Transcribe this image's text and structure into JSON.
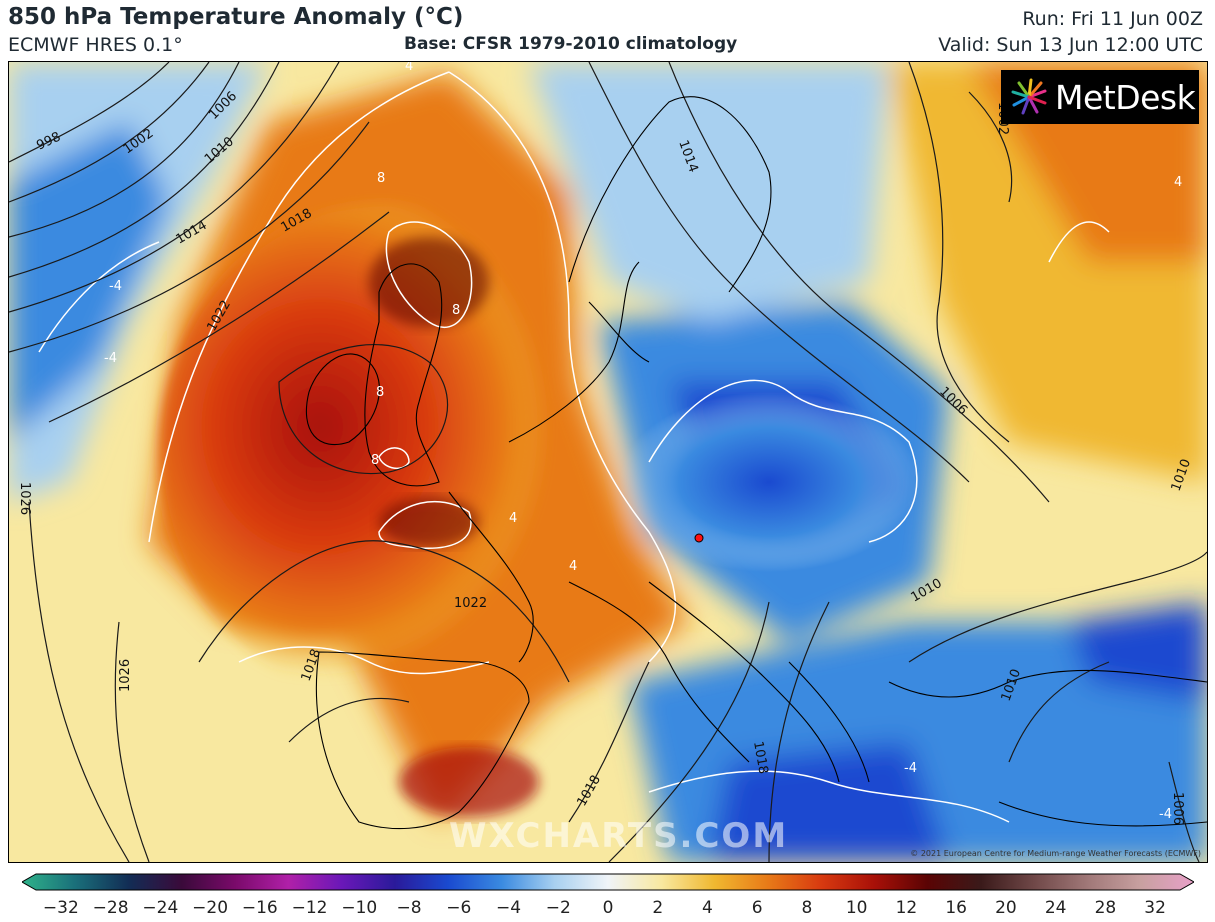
{
  "header": {
    "title": "850 hPa Temperature Anomaly (°C)",
    "model": "ECMWF HRES 0.1°",
    "base": "Base: CFSR 1979-2010 climatology",
    "run": "Run: Fri 11 Jun 00Z",
    "valid": "Valid: Sun 13 Jun 12:00 UTC"
  },
  "logo": {
    "text": "MetDesk"
  },
  "copyright": "© 2021 European Centre for Medium-range Weather Forecasts (ECMWF)",
  "watermark": "WXCHARTS.COM",
  "isobar_labels": [
    "998",
    "1002",
    "1006",
    "1010",
    "1014",
    "1018",
    "1022",
    "1026",
    "1014",
    "1002",
    "1006",
    "1010",
    "1022",
    "1026",
    "1018",
    "1018",
    "1010",
    "1006",
    "1010",
    "1018"
  ],
  "anomaly_labels": [
    "8",
    "8",
    "8",
    "8",
    "4",
    "4",
    "4",
    "4",
    "-4",
    "-4",
    "-4",
    "-4"
  ],
  "colorbar": {
    "ticks": [
      "−32",
      "−28",
      "−24",
      "−20",
      "−16",
      "−12",
      "−10",
      "−8",
      "−6",
      "−4",
      "−2",
      "0",
      "2",
      "4",
      "6",
      "8",
      "10",
      "12",
      "16",
      "20",
      "24",
      "28",
      "32"
    ],
    "colors": [
      "#2fb38a",
      "#1a6f7a",
      "#122d55",
      "#3a0a3a",
      "#7a0a6a",
      "#b020a8",
      "#6a18b8",
      "#2a1a9a",
      "#1a4ad0",
      "#3a8ae0",
      "#a8d0f0",
      "#f0f4f8",
      "#f8e8a0",
      "#f0b830",
      "#e87a18",
      "#d83a10",
      "#a81008",
      "#5a0404",
      "#3a1a1a",
      "#704848",
      "#a07878",
      "#c8a0a0",
      "#e8a0c8"
    ]
  }
}
